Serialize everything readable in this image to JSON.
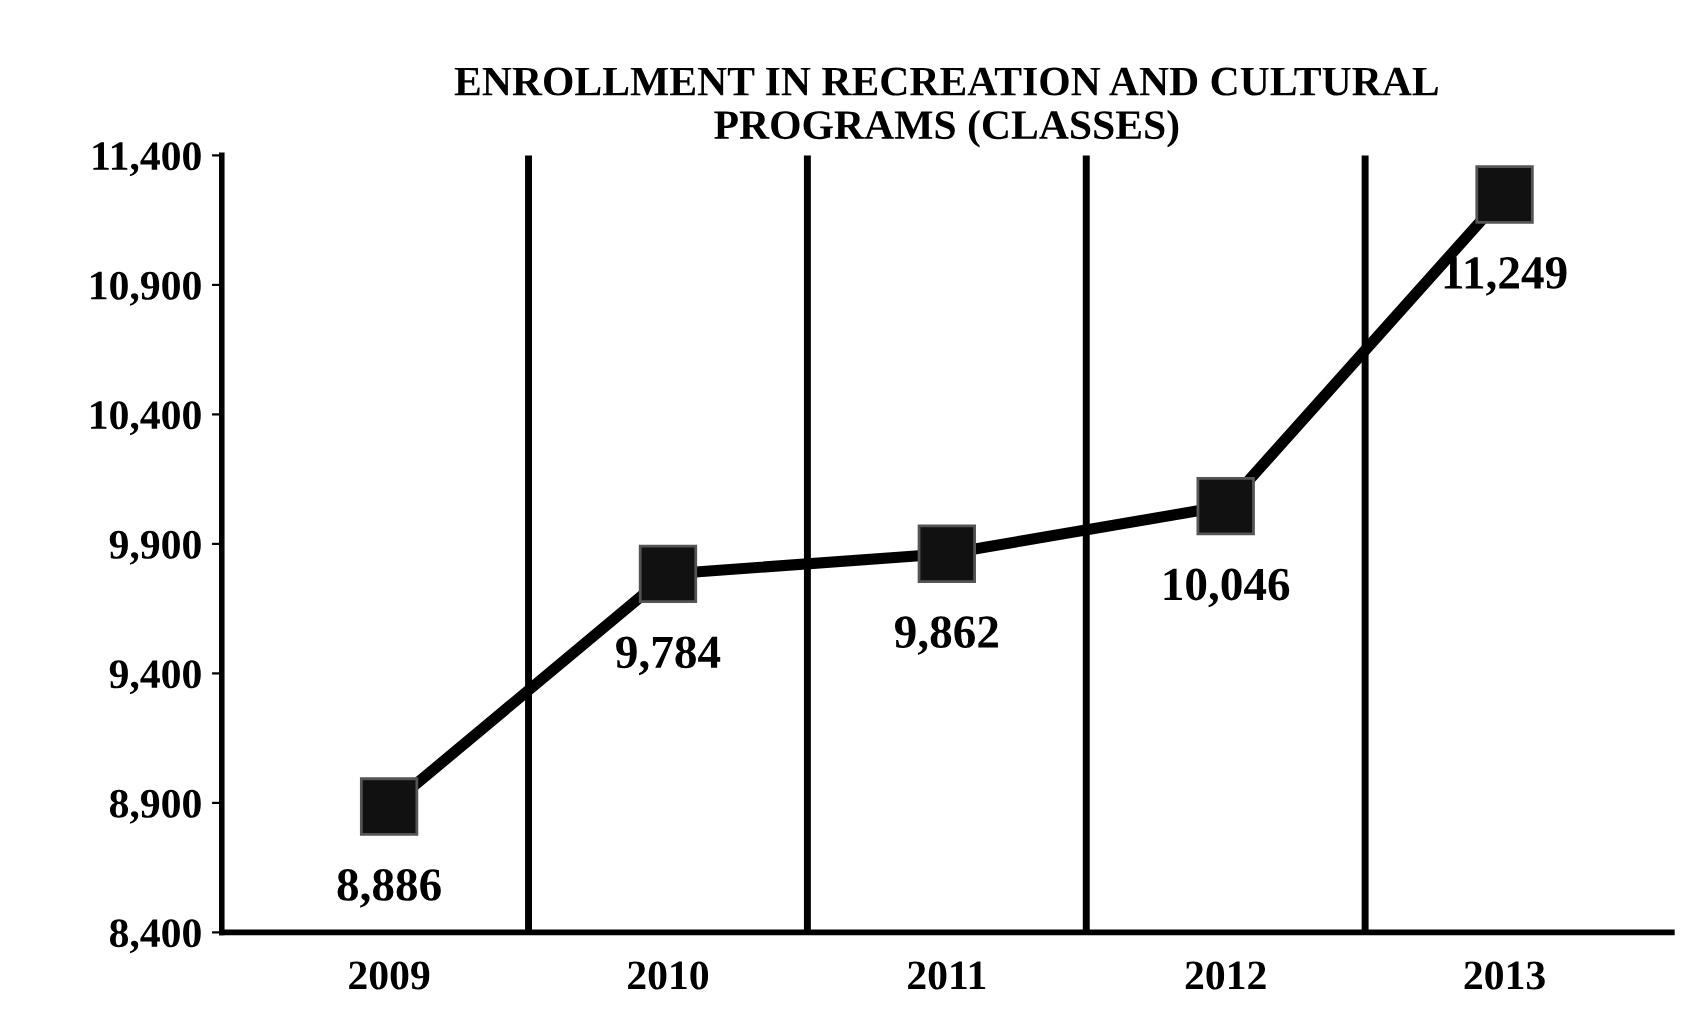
{
  "chart_data": {
    "type": "line",
    "title": "ENROLLMENT IN RECREATION AND CULTURAL\nPROGRAMS (CLASSES)",
    "categories": [
      "2009",
      "2010",
      "2011",
      "2012",
      "2013"
    ],
    "series": [
      {
        "color": "#000000",
        "values": [
          8886,
          9784,
          9862,
          10046,
          11249
        ]
      }
    ],
    "ylim": [
      8400,
      11400
    ],
    "yticks": [
      {
        "value": 8400,
        "label": "8,400"
      },
      {
        "value": 8900,
        "label": "8,900"
      },
      {
        "value": 9400,
        "label": "9,400"
      },
      {
        "value": 9900,
        "label": "9,900"
      },
      {
        "value": 10400,
        "label": "10,400"
      },
      {
        "value": 10900,
        "label": "10,900"
      },
      {
        "value": 11400,
        "label": "11,400"
      }
    ],
    "value_labels": [
      "8,886",
      "9,784",
      "9,862",
      "10,046",
      "11,249"
    ],
    "grid": "x",
    "marker": "square",
    "line_style": "solid",
    "legend": false
  }
}
